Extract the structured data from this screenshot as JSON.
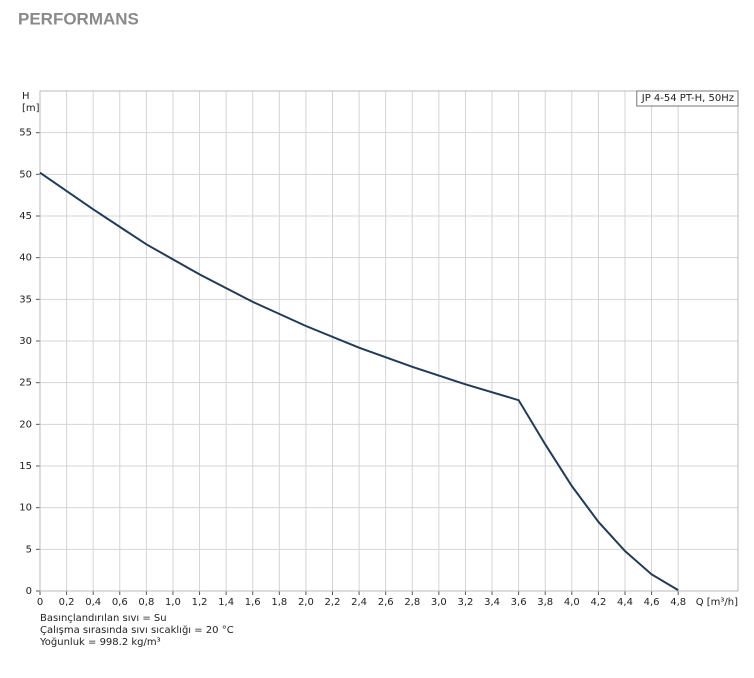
{
  "header": {
    "title": "PERFORMANS"
  },
  "chart_data": {
    "type": "line",
    "x_label": "Q [m³/h]",
    "y_label": [
      "H",
      "[m]"
    ],
    "x": [
      0,
      0.4,
      0.8,
      1.0,
      1.2,
      1.6,
      2.0,
      2.4,
      2.8,
      3.2,
      3.6,
      3.8,
      4.0,
      4.2,
      4.4,
      4.6,
      4.8
    ],
    "series": [
      {
        "name": "JP 4-54 PT-H, 50Hz",
        "color": "#1f3c5a",
        "values": [
          50.2,
          45.8,
          41.6,
          39.8,
          38.0,
          34.7,
          31.8,
          29.2,
          26.9,
          24.8,
          22.9,
          17.6,
          12.6,
          8.3,
          4.8,
          2.0,
          0.1
        ]
      }
    ],
    "xlim": [
      0,
      5.25
    ],
    "ylim": [
      0,
      60
    ],
    "xticks": [
      0,
      {
        "value": 0.2,
        "label": "0,2"
      },
      {
        "value": 0.4,
        "label": "0,4"
      },
      {
        "value": 0.6,
        "label": "0,6"
      },
      {
        "value": 0.8,
        "label": "0,8"
      },
      {
        "value": 1.0,
        "label": "1,0"
      },
      {
        "value": 1.2,
        "label": "1,2"
      },
      {
        "value": 1.4,
        "label": "1,4"
      },
      {
        "value": 1.6,
        "label": "1,6"
      },
      {
        "value": 1.8,
        "label": "1,8"
      },
      {
        "value": 2.0,
        "label": "2,0"
      },
      {
        "value": 2.2,
        "label": "2,2"
      },
      {
        "value": 2.4,
        "label": "2,4"
      },
      {
        "value": 2.6,
        "label": "2,6"
      },
      {
        "value": 2.8,
        "label": "2,8"
      },
      {
        "value": 3.0,
        "label": "3,0"
      },
      {
        "value": 3.2,
        "label": "3,2"
      },
      {
        "value": 3.4,
        "label": "3,4"
      },
      {
        "value": 3.6,
        "label": "3,6"
      },
      {
        "value": 3.8,
        "label": "3,8"
      },
      {
        "value": 4.0,
        "label": "4,0"
      },
      {
        "value": 4.2,
        "label": "4,2"
      },
      {
        "value": 4.4,
        "label": "4,4"
      },
      {
        "value": 4.6,
        "label": "4,6"
      },
      {
        "value": 4.8,
        "label": "4,8"
      }
    ],
    "yticks": [
      0,
      5,
      10,
      15,
      20,
      25,
      30,
      35,
      40,
      45,
      50,
      55
    ],
    "grid": true,
    "legend": "top-right",
    "notes": [
      "Basınçlandırılan sıvı = Su",
      "Çalışma sırasında sıvı sıcaklığı = 20 °C",
      "Yoğunluk = 998.2 kg/m³"
    ]
  }
}
